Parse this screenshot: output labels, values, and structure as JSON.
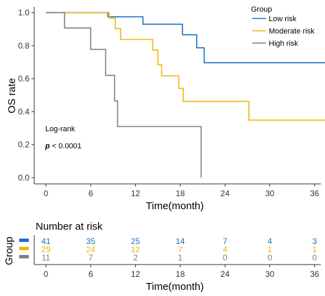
{
  "chart_data": [
    {
      "type": "line",
      "subtype": "kaplan-meier",
      "xlabel": "Time(month)",
      "ylabel": "OS rate",
      "xlim": [
        -2,
        38
      ],
      "ylim": [
        -0.02,
        1.02
      ],
      "x_ticks": [
        0,
        6,
        12,
        18,
        24,
        30,
        36
      ],
      "y_ticks": [
        0.0,
        0.2,
        0.4,
        0.6,
        0.8,
        1.0
      ],
      "x_tick_labels": [
        "0",
        "6",
        "12",
        "18",
        "24",
        "30",
        "36"
      ],
      "y_tick_labels": [
        "0.0",
        "0.2",
        "0.4",
        "0.6",
        "0.8",
        "1.0"
      ],
      "grid": false,
      "legend": {
        "title": "Group",
        "placement": "top-right",
        "entries": [
          "Low risk",
          "Moderate risk",
          "High risk"
        ]
      },
      "annotations": {
        "test_name": "Log-rank",
        "p_symbol": "p",
        "p_value": " < 0.0001"
      },
      "series": [
        {
          "name": "Low risk",
          "color": "#1a73c5",
          "steps": [
            [
              0,
              1.0
            ],
            [
              8.3,
              0.975
            ],
            [
              13,
              0.93
            ],
            [
              18.3,
              0.866
            ],
            [
              20.2,
              0.787
            ],
            [
              21.2,
              0.697
            ],
            [
              38,
              0.697
            ]
          ]
        },
        {
          "name": "Moderate risk",
          "color": "#f2b705",
          "steps": [
            [
              0,
              1.0
            ],
            [
              8.5,
              0.967
            ],
            [
              9.3,
              0.904
            ],
            [
              10,
              0.838
            ],
            [
              14.3,
              0.773
            ],
            [
              15,
              0.685
            ],
            [
              15.5,
              0.617
            ],
            [
              17.8,
              0.541
            ],
            [
              18.4,
              0.462
            ],
            [
              27.2,
              0.349
            ],
            [
              38,
              0.349
            ]
          ]
        },
        {
          "name": "High risk",
          "color": "#808080",
          "steps": [
            [
              0,
              1.0
            ],
            [
              2.5,
              0.907
            ],
            [
              6,
              0.777
            ],
            [
              8,
              0.62
            ],
            [
              9.2,
              0.465
            ],
            [
              9.6,
              0.31
            ],
            [
              20.8,
              0.31
            ],
            [
              20.8,
              0.0
            ]
          ]
        }
      ]
    },
    {
      "type": "table",
      "title": "Number at risk",
      "ylabel": "Group",
      "xlabel": "Time(month)",
      "time_points": [
        0,
        6,
        12,
        18,
        24,
        30,
        36
      ],
      "time_labels": [
        "0",
        "6",
        "12",
        "18",
        "24",
        "30",
        "36"
      ],
      "rows": [
        {
          "color": "#1a73c5",
          "values": [
            "41",
            "35",
            "25",
            "14",
            "7",
            "4",
            "3"
          ]
        },
        {
          "color": "#f2b705",
          "values": [
            "29",
            "24",
            "12",
            "7",
            "4",
            "1",
            "1"
          ]
        },
        {
          "color": "#808080",
          "values": [
            "11",
            "7",
            "2",
            "1",
            "0",
            "0",
            "0"
          ]
        }
      ]
    }
  ]
}
